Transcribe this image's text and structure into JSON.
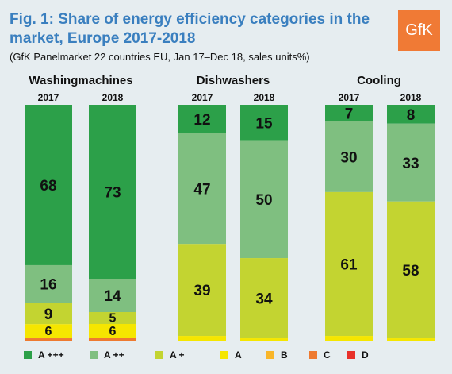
{
  "header": {
    "title": "Fig. 1: Share of energy efficiency categories in the market, Europe 2017-2018",
    "subtitle": "(GfK Panelmarket 22 countries EU, Jan 17–Dec 18, sales units%)",
    "logo_text": "GfK"
  },
  "colors": {
    "A +++": "#2ca049",
    "A ++": "#7fbf80",
    "A +": "#c3d431",
    "A": "#f5e600",
    "B": "#f9b62a",
    "C": "#ee7a30",
    "D": "#e8312a",
    "accent": "#3a7fbf",
    "logo": "#f07a35"
  },
  "chart_data": {
    "type": "bar",
    "stacked": true,
    "normalized": true,
    "groups": [
      {
        "name": "Washingmachines",
        "categories": [
          "2017",
          "2018"
        ],
        "series": [
          {
            "name": "A +++",
            "values": [
              68,
              73
            ]
          },
          {
            "name": "A ++",
            "values": [
              16,
              14
            ]
          },
          {
            "name": "A +",
            "values": [
              9,
              5
            ]
          },
          {
            "name": "A",
            "values": [
              6,
              6
            ]
          },
          {
            "name": "B",
            "values": [
              0,
              0
            ]
          },
          {
            "name": "C",
            "values": [
              1,
              1
            ]
          },
          {
            "name": "D",
            "values": [
              0,
              0
            ]
          }
        ]
      },
      {
        "name": "Dishwashers",
        "categories": [
          "2017",
          "2018"
        ],
        "series": [
          {
            "name": "A +++",
            "values": [
              12,
              15
            ]
          },
          {
            "name": "A ++",
            "values": [
              47,
              50
            ]
          },
          {
            "name": "A +",
            "values": [
              39,
              34
            ]
          },
          {
            "name": "A",
            "values": [
              2,
              1
            ]
          },
          {
            "name": "B",
            "values": [
              0,
              0
            ]
          },
          {
            "name": "C",
            "values": [
              0,
              0
            ]
          },
          {
            "name": "D",
            "values": [
              0,
              0
            ]
          }
        ]
      },
      {
        "name": "Cooling",
        "categories": [
          "2017",
          "2018"
        ],
        "series": [
          {
            "name": "A +++",
            "values": [
              7,
              8
            ]
          },
          {
            "name": "A ++",
            "values": [
              30,
              33
            ]
          },
          {
            "name": "A +",
            "values": [
              61,
              58
            ]
          },
          {
            "name": "A",
            "values": [
              2,
              1
            ]
          },
          {
            "name": "B",
            "values": [
              0,
              0
            ]
          },
          {
            "name": "C",
            "values": [
              0,
              0
            ]
          },
          {
            "name": "D",
            "values": [
              0,
              0
            ]
          }
        ]
      }
    ],
    "labeled_values": [
      [
        [
          68,
          16,
          9,
          6
        ],
        [
          73,
          14,
          5,
          6
        ]
      ],
      [
        [
          12,
          47,
          39
        ],
        [
          15,
          50,
          34
        ]
      ],
      [
        [
          7,
          30,
          61
        ],
        [
          8,
          33,
          58
        ]
      ]
    ],
    "legend": [
      "A +++",
      "A ++",
      "A +",
      "A",
      "B",
      "C",
      "D"
    ],
    "legend_position": "bottom",
    "ylim": [
      0,
      100
    ],
    "grid": false
  }
}
